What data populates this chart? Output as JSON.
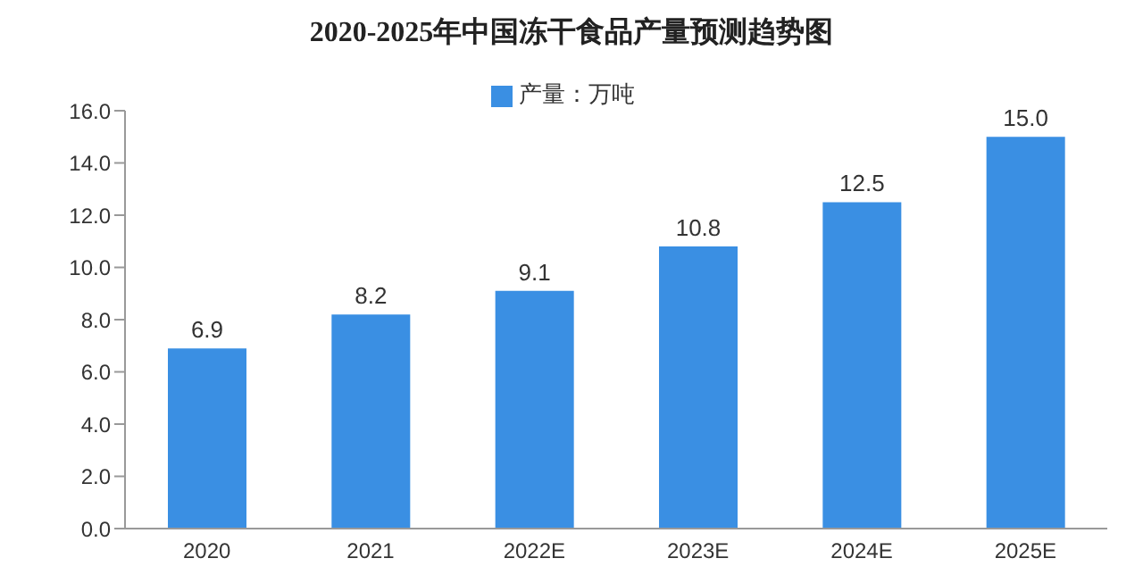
{
  "chart_data": {
    "type": "bar",
    "title": "2020-2025年中国冻干食品产量预测趋势图",
    "categories": [
      "2020",
      "2021",
      "2022E",
      "2023E",
      "2024E",
      "2025E"
    ],
    "series": [
      {
        "name": "产量：万吨",
        "color": "#3a8fe3",
        "values": [
          6.9,
          8.2,
          9.1,
          10.8,
          12.5,
          15.0
        ],
        "value_labels": [
          "6.9",
          "8.2",
          "9.1",
          "10.8",
          "12.5",
          "15.0"
        ]
      }
    ],
    "ylim": [
      0,
      16
    ],
    "yticks": [
      {
        "value": 0,
        "label": "0.0"
      },
      {
        "value": 2,
        "label": "2.0"
      },
      {
        "value": 4,
        "label": "4.0"
      },
      {
        "value": 6,
        "label": "6.0"
      },
      {
        "value": 8,
        "label": "8.0"
      },
      {
        "value": 10,
        "label": "10.0"
      },
      {
        "value": 12,
        "label": "12.0"
      },
      {
        "value": 14,
        "label": "14.0"
      },
      {
        "value": 16,
        "label": "16.0"
      }
    ],
    "grid": false,
    "legend": "top"
  }
}
